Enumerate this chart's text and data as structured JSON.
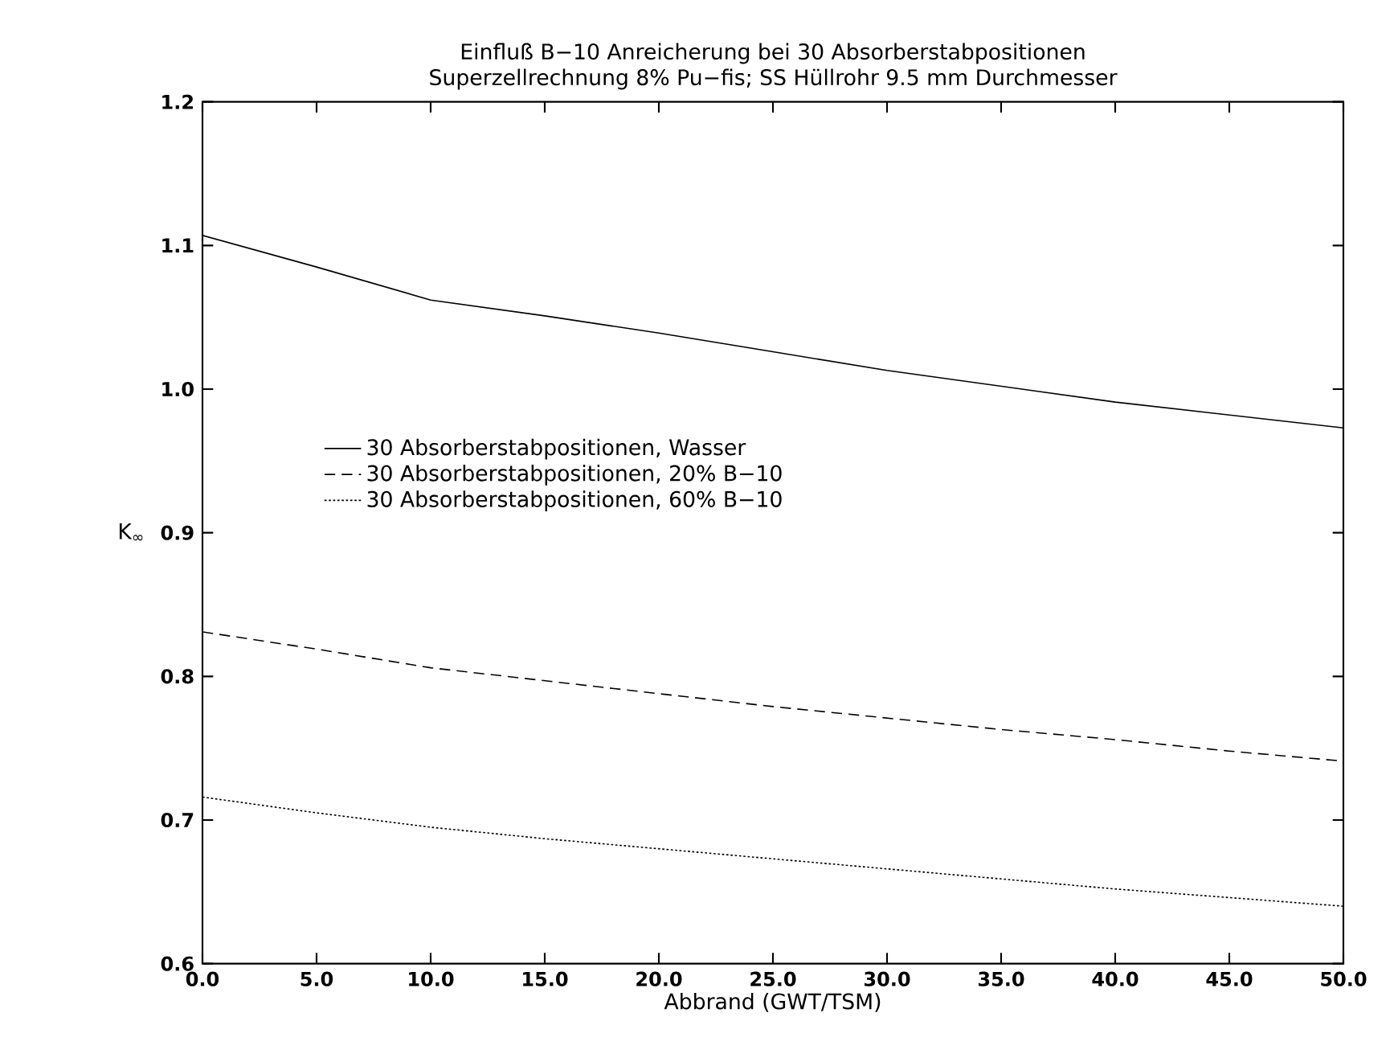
{
  "chart_data": {
    "type": "line",
    "title": "Einfluß B−10 Anreicherung bei 30 Absorberstabpositionen",
    "subtitle": "Superzellrechnung 8% Pu−fis; SS Hüllrohr 9.5 mm Durchmesser",
    "xlabel": "Abbrand (GWT/TSM)",
    "ylabel": "K$_{∞}$",
    "x": [
      0,
      5,
      10,
      15,
      20,
      25,
      30,
      35,
      40,
      45,
      50
    ],
    "series": [
      {
        "name": "30 Absorberstabpositionen, Wasser",
        "color": "#000000",
        "line_style": "solid",
        "values": [
          1.107,
          1.085,
          1.062,
          1.051,
          1.039,
          1.026,
          1.013,
          1.002,
          0.991,
          0.982,
          0.973
        ]
      },
      {
        "name": "30 Absorberstabpositionen, 20% B−10",
        "color": "#000000",
        "line_style": "dashed",
        "values": [
          0.831,
          0.819,
          0.806,
          0.797,
          0.788,
          0.779,
          0.771,
          0.763,
          0.756,
          0.748,
          0.741
        ]
      },
      {
        "name": "30 Absorberstabpositionen, 60% B−10",
        "color": "#000000",
        "line_style": "dotted",
        "values": [
          0.716,
          0.705,
          0.695,
          0.687,
          0.68,
          0.673,
          0.666,
          0.659,
          0.652,
          0.646,
          0.64
        ]
      }
    ],
    "xlim": [
      0,
      50
    ],
    "ylim": [
      0.6,
      1.2
    ],
    "xticks": [
      {
        "value": 0,
        "label": "0.0"
      },
      {
        "value": 5,
        "label": "5.0"
      },
      {
        "value": 10,
        "label": "10.0"
      },
      {
        "value": 15,
        "label": "15.0"
      },
      {
        "value": 20,
        "label": "20.0"
      },
      {
        "value": 25,
        "label": "25.0"
      },
      {
        "value": 30,
        "label": "30.0"
      },
      {
        "value": 35,
        "label": "35.0"
      },
      {
        "value": 40,
        "label": "40.0"
      },
      {
        "value": 45,
        "label": "45.0"
      },
      {
        "value": 50,
        "label": "50.0"
      }
    ],
    "yticks": [
      0.6,
      0.7,
      0.8,
      0.9,
      {
        "value": 1.0,
        "label": "1.0"
      },
      1.1,
      1.2
    ],
    "grid": false,
    "legend": "center",
    "marker": "none"
  }
}
